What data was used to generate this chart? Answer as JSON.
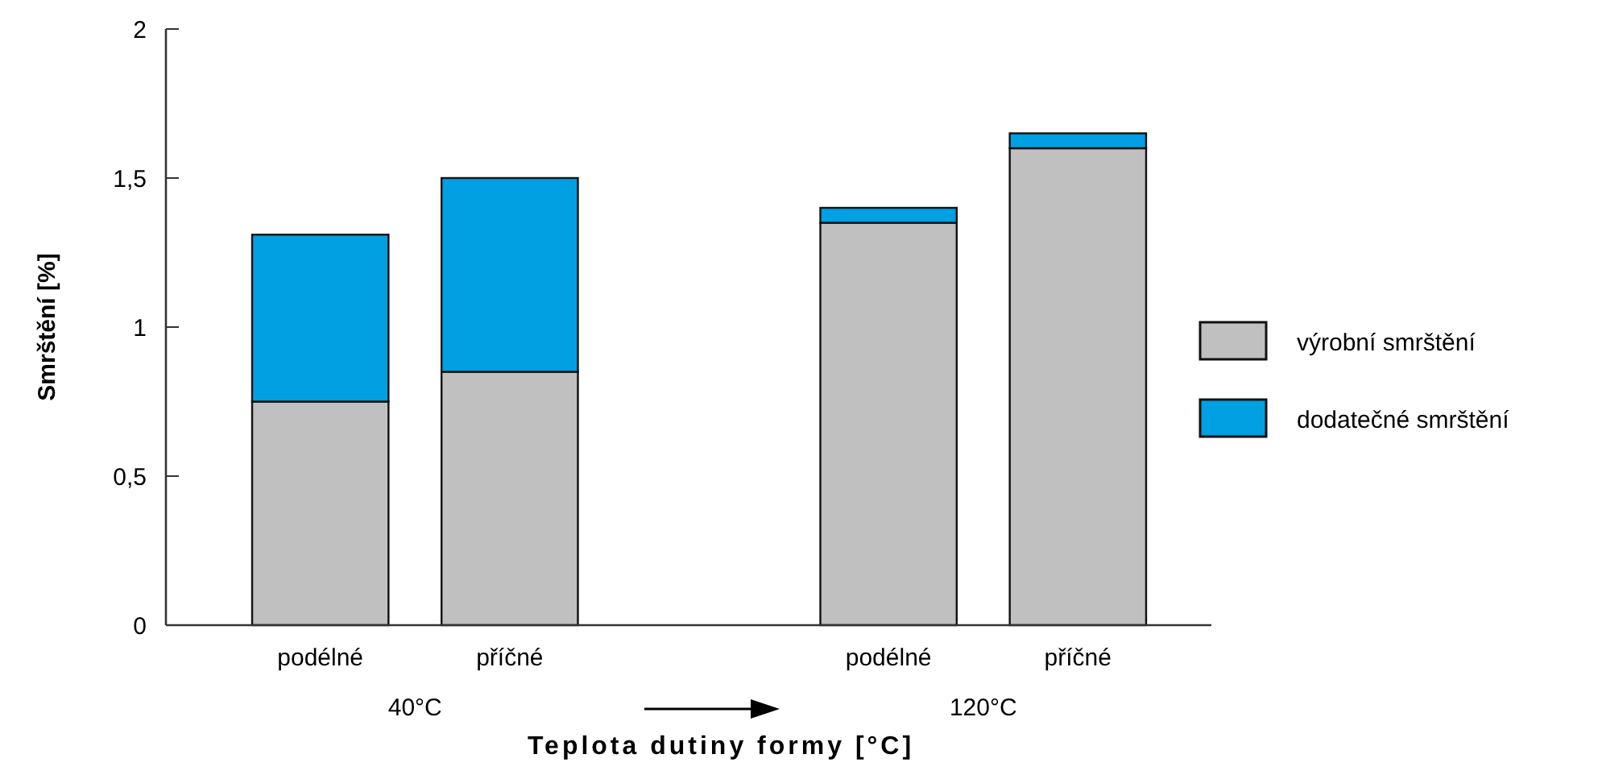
{
  "chart_data": {
    "type": "bar",
    "stacked": true,
    "categories": [
      "podélné",
      "příčné",
      null,
      "podélné",
      "příčné"
    ],
    "series": [
      {
        "name": "výrobní smrštění",
        "color": "#c0c0c0",
        "values": [
          0.75,
          0.85,
          null,
          1.35,
          1.6
        ]
      },
      {
        "name": "dodatečné smrštění",
        "color": "#00a0e3",
        "values": [
          0.56,
          0.65,
          null,
          0.05,
          0.05
        ]
      }
    ],
    "ylim": [
      0,
      2
    ],
    "yticks": [
      0,
      {
        "value": 0.5,
        "label": "0,5"
      },
      1,
      {
        "value": 1.5,
        "label": "1,5"
      },
      2
    ],
    "xlabel": "Teplota dutiny formy [°C]",
    "ylabel": "Smrštění [%]",
    "annotations": [
      "40°C",
      "120°C"
    ],
    "legend": "right",
    "grid": false
  }
}
